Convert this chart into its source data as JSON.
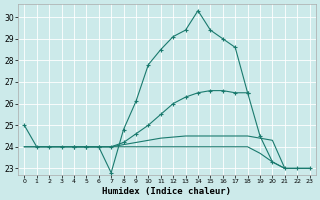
{
  "background_color": "#cceaea",
  "grid_color": "#b0d8d8",
  "line_color": "#1a7a6e",
  "xlabel": "Humidex (Indice chaleur)",
  "xlim": [
    -0.5,
    23.5
  ],
  "ylim": [
    22.7,
    30.6
  ],
  "yticks": [
    23,
    24,
    25,
    26,
    27,
    28,
    29,
    30
  ],
  "xticks": [
    0,
    1,
    2,
    3,
    4,
    5,
    6,
    7,
    8,
    9,
    10,
    11,
    12,
    13,
    14,
    15,
    16,
    17,
    18,
    19,
    20,
    21,
    22,
    23
  ],
  "line1_x": [
    0,
    1,
    2,
    3,
    4,
    5,
    6,
    7,
    8,
    9,
    10,
    11,
    12,
    13,
    14,
    15,
    16,
    17,
    18
  ],
  "line1_y": [
    25,
    24,
    24,
    24,
    24,
    24,
    24,
    22.8,
    24.8,
    26.1,
    27.8,
    28.5,
    29.1,
    29.4,
    30.3,
    29.4,
    29.0,
    28.6,
    26.5
  ],
  "line2_x": [
    4,
    5,
    6,
    7,
    8,
    9,
    10,
    11,
    12,
    13,
    14,
    15,
    16,
    17,
    18,
    19,
    20,
    21,
    22,
    23
  ],
  "line2_y": [
    24,
    24,
    24,
    24,
    24.2,
    24.6,
    25.0,
    25.5,
    26.0,
    26.3,
    26.5,
    26.6,
    26.6,
    26.5,
    26.5,
    24.5,
    23.3,
    23.0,
    23.0,
    23.0
  ],
  "line3_x": [
    0,
    1,
    2,
    3,
    4,
    5,
    6,
    7,
    8,
    9,
    10,
    11,
    12,
    13,
    14,
    15,
    16,
    17,
    18,
    19,
    20,
    21,
    22,
    23
  ],
  "line3_y": [
    24,
    24,
    24,
    24,
    24,
    24,
    24,
    24,
    24.1,
    24.2,
    24.3,
    24.4,
    24.45,
    24.5,
    24.5,
    24.5,
    24.5,
    24.5,
    24.5,
    24.4,
    24.3,
    23.0,
    23.0,
    23.0
  ],
  "line4_x": [
    0,
    1,
    2,
    3,
    4,
    5,
    6,
    7,
    8,
    9,
    10,
    11,
    12,
    13,
    14,
    15,
    16,
    17,
    18,
    19,
    20,
    21,
    22,
    23
  ],
  "line4_y": [
    24,
    24,
    24,
    24,
    24,
    24,
    24,
    24,
    24,
    24,
    24,
    24,
    24,
    24,
    24,
    24,
    24,
    24,
    24,
    23.7,
    23.3,
    23.0,
    23.0,
    23.0
  ]
}
